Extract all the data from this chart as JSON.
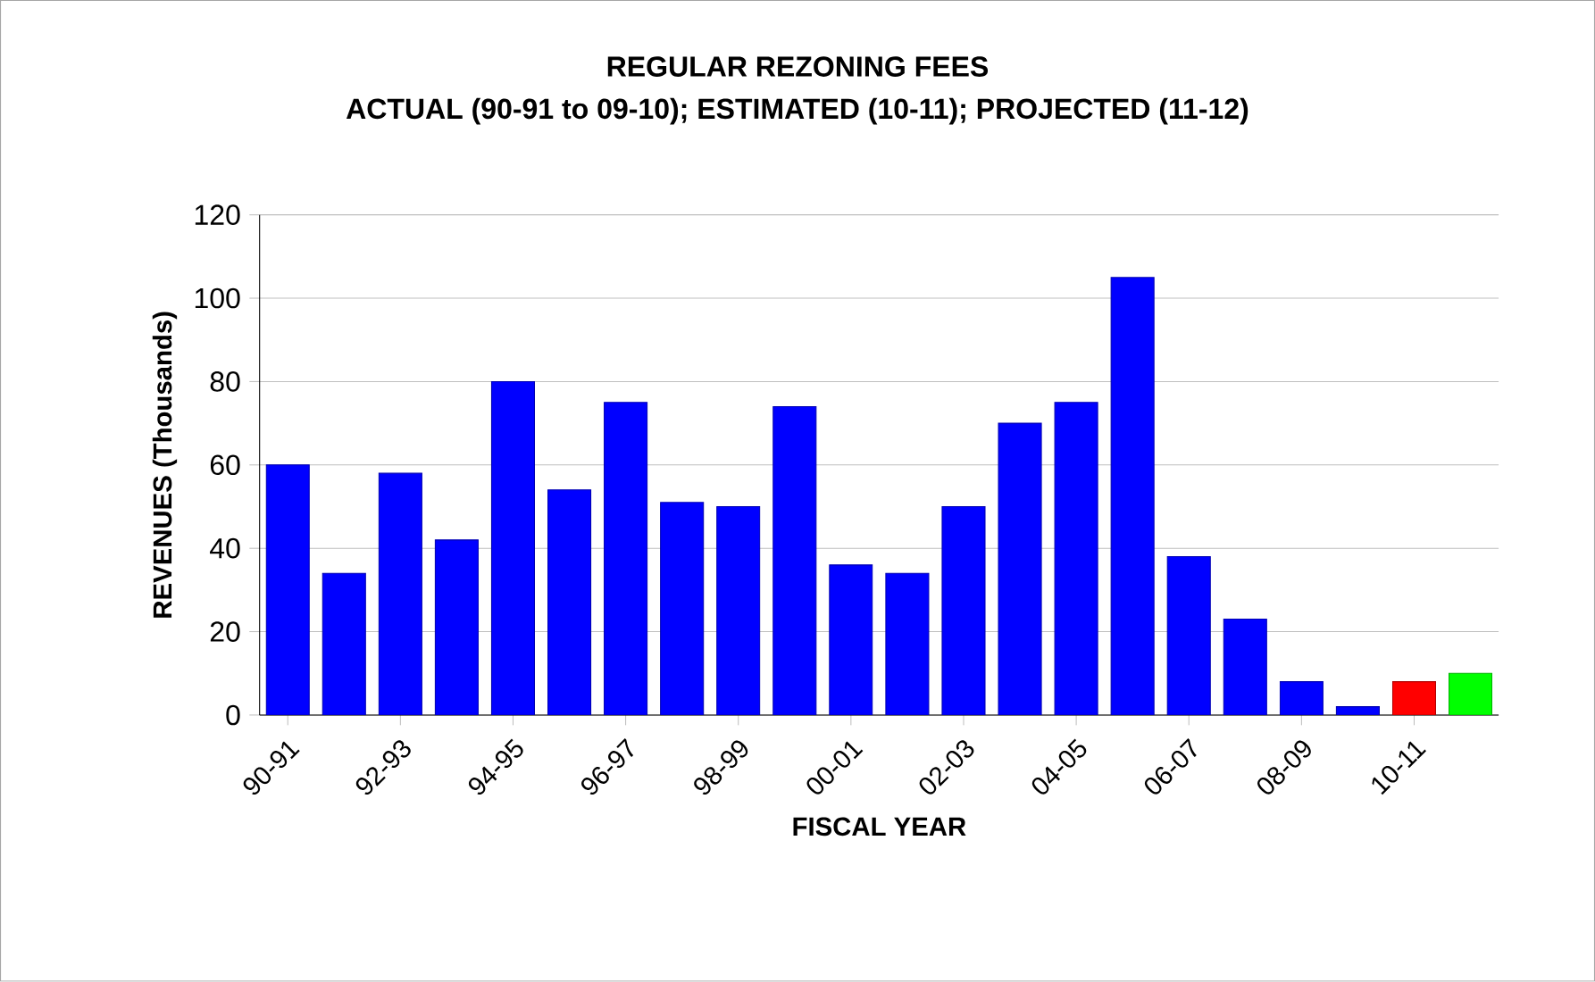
{
  "chart_data": {
    "type": "bar",
    "title": "REGULAR REZONING FEES",
    "subtitle": "ACTUAL (90-91 to 09-10); ESTIMATED (10-11); PROJECTED (11-12)",
    "xlabel": "FISCAL YEAR",
    "ylabel": "REVENUES (Thousands)",
    "categories": [
      "90-91",
      null,
      "92-93",
      null,
      "94-95",
      null,
      "96-97",
      null,
      "98-99",
      null,
      "00-01",
      null,
      "02-03",
      null,
      "04-05",
      null,
      "06-07",
      null,
      "08-09",
      null,
      "10-11",
      null
    ],
    "values": [
      60,
      34,
      58,
      42,
      80,
      54,
      75,
      51,
      50,
      74,
      36,
      34,
      50,
      70,
      75,
      105,
      38,
      23,
      8,
      2,
      8,
      10
    ],
    "colors": [
      "#0000ff",
      "#0000ff",
      "#0000ff",
      "#0000ff",
      "#0000ff",
      "#0000ff",
      "#0000ff",
      "#0000ff",
      "#0000ff",
      "#0000ff",
      "#0000ff",
      "#0000ff",
      "#0000ff",
      "#0000ff",
      "#0000ff",
      "#0000ff",
      "#0000ff",
      "#0000ff",
      "#0000ff",
      "#0000ff",
      "#ff0000",
      "#00ff00"
    ],
    "ylim": [
      0,
      120
    ],
    "yticks": [
      0,
      20,
      40,
      60,
      80,
      100,
      120
    ],
    "grid": "y"
  }
}
